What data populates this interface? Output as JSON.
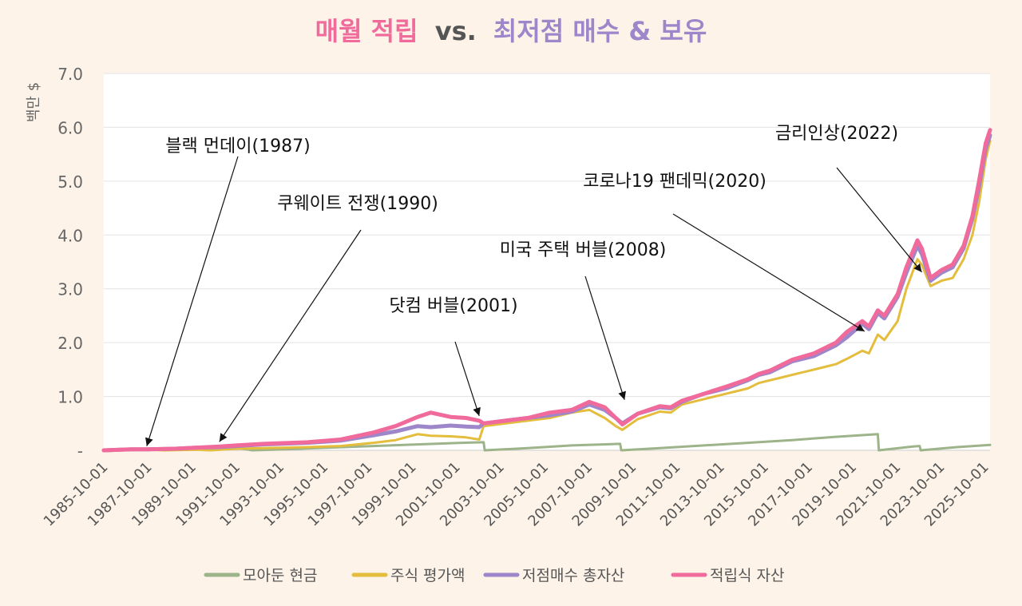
{
  "chart_data": {
    "type": "line",
    "title": {
      "part1": "매월 적립",
      "part2": "vs.",
      "part3": "최저점 매수 & 보유"
    },
    "ylabel": "백만 $",
    "ylim": [
      0,
      7
    ],
    "yticks": [
      "-",
      "1.0",
      "2.0",
      "3.0",
      "4.0",
      "5.0",
      "6.0",
      "7.0"
    ],
    "xlim": [
      1985.75,
      2026.0
    ],
    "xticks": [
      {
        "label": "1985-10-01",
        "t": 1985.75
      },
      {
        "label": "1987-10-01",
        "t": 1987.75
      },
      {
        "label": "1989-10-01",
        "t": 1989.75
      },
      {
        "label": "1991-10-01",
        "t": 1991.75
      },
      {
        "label": "1993-10-01",
        "t": 1993.75
      },
      {
        "label": "1995-10-01",
        "t": 1995.75
      },
      {
        "label": "1997-10-01",
        "t": 1997.75
      },
      {
        "label": "1999-10-01",
        "t": 1999.75
      },
      {
        "label": "2001-10-01",
        "t": 2001.75
      },
      {
        "label": "2003-10-01",
        "t": 2003.75
      },
      {
        "label": "2005-10-01",
        "t": 2005.75
      },
      {
        "label": "2007-10-01",
        "t": 2007.75
      },
      {
        "label": "2009-10-01",
        "t": 2009.75
      },
      {
        "label": "2011-10-01",
        "t": 2011.75
      },
      {
        "label": "2013-10-01",
        "t": 2013.75
      },
      {
        "label": "2015-10-01",
        "t": 2015.75
      },
      {
        "label": "2017-10-01",
        "t": 2017.75
      },
      {
        "label": "2019-10-01",
        "t": 2019.75
      },
      {
        "label": "2021-10-01",
        "t": 2021.75
      },
      {
        "label": "2023-10-01",
        "t": 2023.75
      },
      {
        "label": "2025-10-01",
        "t": 2025.75
      }
    ],
    "series": [
      {
        "name": "모아둔 현금",
        "color": "#9db48a",
        "width": 3,
        "x": [
          1985.75,
          1987.0,
          1987.75,
          1989.0,
          1990.0,
          1991.0,
          1991.75,
          1992.5,
          1994,
          1996,
          1998,
          2000,
          2002,
          2003.0,
          2003.05,
          2005,
          2007,
          2009.2,
          2009.25,
          2011,
          2013,
          2015,
          2017,
          2019,
          2020.9,
          2020.95,
          2022.5,
          2022.8,
          2022.85,
          2024.5,
          2026.0
        ],
        "y": [
          0,
          0.01,
          0.01,
          0.02,
          0.03,
          0.04,
          0.05,
          0,
          0.02,
          0.05,
          0.08,
          0.11,
          0.14,
          0.15,
          0,
          0.04,
          0.09,
          0.12,
          0,
          0.04,
          0.09,
          0.14,
          0.19,
          0.25,
          0.3,
          0,
          0.07,
          0.08,
          0,
          0.06,
          0.1
        ]
      },
      {
        "name": "주식 평가액",
        "color": "#e4bd3c",
        "width": 3,
        "x": [
          1985.75,
          1987.0,
          1987.75,
          1988.5,
          1990.0,
          1990.6,
          1991.75,
          1993,
          1995,
          1996.5,
          1998,
          1999,
          2000.0,
          2000.6,
          2001.5,
          2002.2,
          2002.8,
          2003.0,
          2004,
          2005,
          2006,
          2007,
          2007.8,
          2008.5,
          2009.0,
          2009.3,
          2010,
          2011,
          2011.5,
          2012,
          2013,
          2014,
          2015,
          2015.5,
          2016,
          2016.5,
          2017,
          2018,
          2018.5,
          2019,
          2019.5,
          2020.2,
          2020.5,
          2020.9,
          2021.2,
          2021.8,
          2022.2,
          2022.7,
          2022.9,
          2023.3,
          2023.8,
          2024.3,
          2024.8,
          2025.2,
          2025.5,
          2025.8,
          2026.0
        ],
        "y": [
          0,
          0.01,
          0.01,
          0,
          0.01,
          0.0,
          0.03,
          0.04,
          0.06,
          0.08,
          0.14,
          0.19,
          0.3,
          0.27,
          0.26,
          0.24,
          0.2,
          0.45,
          0.5,
          0.55,
          0.6,
          0.7,
          0.75,
          0.6,
          0.45,
          0.38,
          0.58,
          0.72,
          0.7,
          0.85,
          0.95,
          1.05,
          1.15,
          1.25,
          1.3,
          1.35,
          1.4,
          1.5,
          1.55,
          1.6,
          1.7,
          1.85,
          1.8,
          2.15,
          2.05,
          2.4,
          3.0,
          3.55,
          3.45,
          3.05,
          3.15,
          3.2,
          3.55,
          4.0,
          4.6,
          5.4,
          5.75
        ]
      },
      {
        "name": "저점매수 총자산",
        "color": "#9d86c9",
        "width": 5,
        "x": [
          1985.75,
          1987.0,
          1987.75,
          1989.0,
          1990.0,
          1991.0,
          1991.75,
          1993,
          1995,
          1996.5,
          1998,
          1999,
          2000.0,
          2000.6,
          2001.5,
          2002.2,
          2002.8,
          2003.0,
          2004,
          2005,
          2006,
          2007,
          2007.8,
          2008.5,
          2009.0,
          2009.3,
          2010,
          2011,
          2011.5,
          2012,
          2013,
          2014,
          2015,
          2015.5,
          2016,
          2016.5,
          2017,
          2018,
          2018.5,
          2019,
          2019.5,
          2020.2,
          2020.5,
          2020.9,
          2021.2,
          2021.8,
          2022.2,
          2022.7,
          2022.9,
          2023.3,
          2023.8,
          2024.3,
          2024.8,
          2025.2,
          2025.5,
          2025.8,
          2026.0
        ],
        "y": [
          0,
          0.02,
          0.02,
          0.03,
          0.05,
          0.06,
          0.08,
          0.11,
          0.14,
          0.18,
          0.28,
          0.35,
          0.45,
          0.43,
          0.46,
          0.44,
          0.43,
          0.5,
          0.55,
          0.6,
          0.65,
          0.72,
          0.85,
          0.75,
          0.6,
          0.5,
          0.68,
          0.8,
          0.78,
          0.9,
          1.05,
          1.15,
          1.3,
          1.4,
          1.45,
          1.55,
          1.65,
          1.75,
          1.85,
          1.95,
          2.1,
          2.35,
          2.25,
          2.55,
          2.45,
          2.85,
          3.3,
          3.8,
          3.65,
          3.15,
          3.3,
          3.4,
          3.75,
          4.3,
          4.9,
          5.6,
          5.85
        ]
      },
      {
        "name": "적립식 자산",
        "color": "#f06b9c",
        "width": 5,
        "x": [
          1985.75,
          1987.0,
          1987.75,
          1989.0,
          1990.0,
          1991.0,
          1991.75,
          1993,
          1995,
          1996.5,
          1998,
          1999,
          2000.0,
          2000.6,
          2001.5,
          2002.2,
          2002.8,
          2003.0,
          2004,
          2005,
          2006,
          2007,
          2007.8,
          2008.5,
          2009.0,
          2009.3,
          2010,
          2011,
          2011.5,
          2012,
          2013,
          2014,
          2015,
          2015.5,
          2016,
          2016.5,
          2017,
          2018,
          2018.5,
          2019,
          2019.5,
          2020.2,
          2020.5,
          2020.9,
          2021.2,
          2021.8,
          2022.2,
          2022.7,
          2022.9,
          2023.3,
          2023.8,
          2024.3,
          2024.8,
          2025.2,
          2025.5,
          2025.8,
          2026.0
        ],
        "y": [
          0,
          0.02,
          0.02,
          0.03,
          0.05,
          0.07,
          0.09,
          0.12,
          0.15,
          0.2,
          0.33,
          0.45,
          0.62,
          0.7,
          0.62,
          0.6,
          0.55,
          0.5,
          0.55,
          0.6,
          0.7,
          0.75,
          0.9,
          0.8,
          0.6,
          0.48,
          0.68,
          0.82,
          0.8,
          0.92,
          1.05,
          1.18,
          1.32,
          1.42,
          1.48,
          1.58,
          1.68,
          1.8,
          1.9,
          2.0,
          2.2,
          2.4,
          2.3,
          2.6,
          2.5,
          2.9,
          3.4,
          3.9,
          3.75,
          3.2,
          3.35,
          3.45,
          3.8,
          4.35,
          5.0,
          5.7,
          5.95
        ]
      }
    ],
    "annotations": [
      {
        "text": "블랙 먼데이(1987)",
        "t": 1987.7,
        "v": 0.02
      },
      {
        "text": "쿠웨이트 전쟁(1990)",
        "t": 1991.0,
        "v": 0.1
      },
      {
        "text": "닷컴 버블(2001)",
        "t": 2002.8,
        "v": 0.58
      },
      {
        "text": "미국 주택 버블(2008)",
        "t": 2009.4,
        "v": 0.88
      },
      {
        "text": "코로나19 팬데믹(2020)",
        "t": 2020.3,
        "v": 2.15
      },
      {
        "text": "금리인상(2022)",
        "t": 2022.9,
        "v": 3.25
      }
    ],
    "legend": [
      "모아둔 현금",
      "주식 평가액",
      "저점매수 총자산",
      "적립식 자산"
    ],
    "legend_position": "bottom",
    "grid": true
  }
}
